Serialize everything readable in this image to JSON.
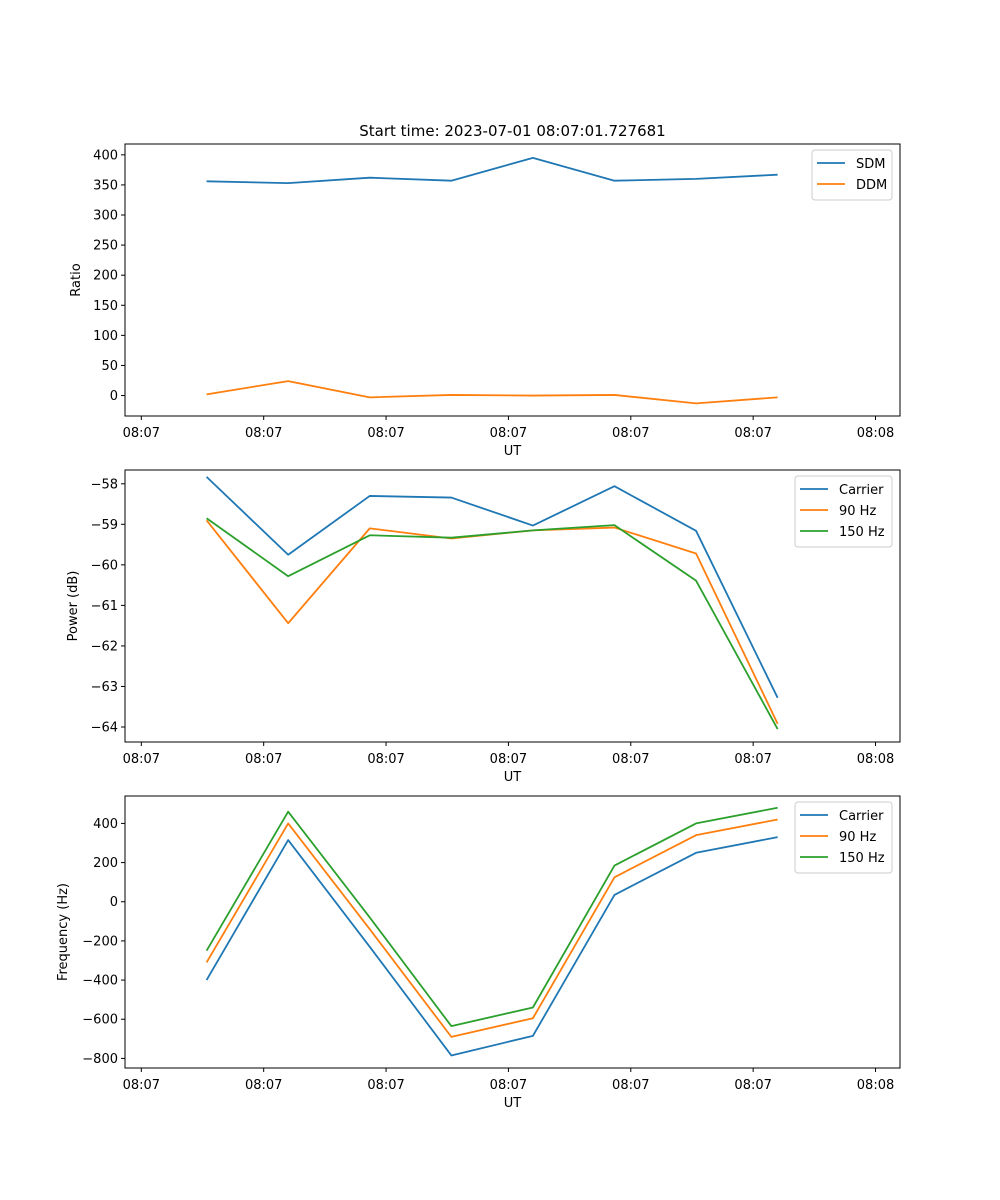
{
  "figure_title": "Start time: 2023-07-01 08:07:01.727681",
  "colors": {
    "blue": "#1f77b4",
    "orange": "#ff7f0e",
    "green": "#2ca02c"
  },
  "chart_data": [
    {
      "type": "line",
      "title": "Start time: 2023-07-01 08:07:01.727681",
      "xlabel": "UT",
      "ylabel": "Ratio",
      "x": [
        1,
        2,
        3,
        4,
        5,
        6,
        7,
        8
      ],
      "xlim": [
        0,
        9.5
      ],
      "x_ticks": [
        0.2,
        1.7,
        3.2,
        4.7,
        6.2,
        7.7,
        9.2
      ],
      "x_tick_labels": [
        "08:07",
        "08:07",
        "08:07",
        "08:07",
        "08:07",
        "08:07",
        "08:08"
      ],
      "ylim": [
        -34,
        418
      ],
      "y_ticks": [
        0,
        50,
        100,
        150,
        200,
        250,
        300,
        350,
        400
      ],
      "y_tick_labels": [
        "0",
        "50",
        "100",
        "150",
        "200",
        "250",
        "300",
        "350",
        "400"
      ],
      "legend": "top-right",
      "series": [
        {
          "name": "SDM",
          "color": "#1f77b4",
          "values": [
            356,
            353,
            362,
            357,
            395,
            357,
            360,
            367
          ]
        },
        {
          "name": "DDM",
          "color": "#ff7f0e",
          "values": [
            2,
            24,
            -3,
            1,
            0,
            1,
            -13,
            -3
          ]
        }
      ]
    },
    {
      "type": "line",
      "title": "",
      "xlabel": "UT",
      "ylabel": "Power (dB)",
      "x": [
        1,
        2,
        3,
        4,
        5,
        6,
        7,
        8
      ],
      "xlim": [
        0,
        9.5
      ],
      "x_ticks": [
        0.2,
        1.7,
        3.2,
        4.7,
        6.2,
        7.7,
        9.2
      ],
      "x_tick_labels": [
        "08:07",
        "08:07",
        "08:07",
        "08:07",
        "08:07",
        "08:07",
        "08:08"
      ],
      "ylim": [
        -64.37,
        -57.66
      ],
      "y_ticks": [
        -64,
        -63,
        -62,
        -61,
        -60,
        -59,
        -58
      ],
      "y_tick_labels": [
        "−64",
        "−63",
        "−62",
        "−61",
        "−60",
        "−59",
        "−58"
      ],
      "legend": "top-right",
      "series": [
        {
          "name": "Carrier",
          "color": "#1f77b4",
          "values": [
            -57.83,
            -59.75,
            -58.3,
            -58.34,
            -59.03,
            -58.06,
            -59.16,
            -63.28
          ]
        },
        {
          "name": "90 Hz",
          "color": "#ff7f0e",
          "values": [
            -58.9,
            -61.44,
            -59.1,
            -59.35,
            -59.15,
            -59.08,
            -59.72,
            -63.92
          ]
        },
        {
          "name": "150 Hz",
          "color": "#2ca02c",
          "values": [
            -58.85,
            -60.28,
            -59.27,
            -59.33,
            -59.15,
            -59.02,
            -60.39,
            -64.05
          ]
        }
      ]
    },
    {
      "type": "line",
      "title": "",
      "xlabel": "UT",
      "ylabel": "Frequency (Hz)",
      "x": [
        1,
        2,
        3,
        4,
        5,
        6,
        7,
        8
      ],
      "xlim": [
        0,
        9.5
      ],
      "x_ticks": [
        0.2,
        1.7,
        3.2,
        4.7,
        6.2,
        7.7,
        9.2
      ],
      "x_tick_labels": [
        "08:07",
        "08:07",
        "08:07",
        "08:07",
        "08:07",
        "08:07",
        "08:08"
      ],
      "ylim": [
        -849,
        540
      ],
      "y_ticks": [
        -800,
        -600,
        -400,
        -200,
        0,
        200,
        400
      ],
      "y_tick_labels": [
        "−800",
        "−600",
        "−400",
        "−200",
        "0",
        "200",
        "400"
      ],
      "legend": "top-right",
      "series": [
        {
          "name": "Carrier",
          "color": "#1f77b4",
          "values": [
            -400,
            315,
            -230,
            -785,
            -685,
            35,
            250,
            330
          ]
        },
        {
          "name": "90 Hz",
          "color": "#ff7f0e",
          "values": [
            -310,
            400,
            -140,
            -690,
            -595,
            125,
            340,
            420
          ]
        },
        {
          "name": "150 Hz",
          "color": "#2ca02c",
          "values": [
            -250,
            460,
            -80,
            -635,
            -540,
            185,
            400,
            480
          ]
        }
      ]
    }
  ]
}
